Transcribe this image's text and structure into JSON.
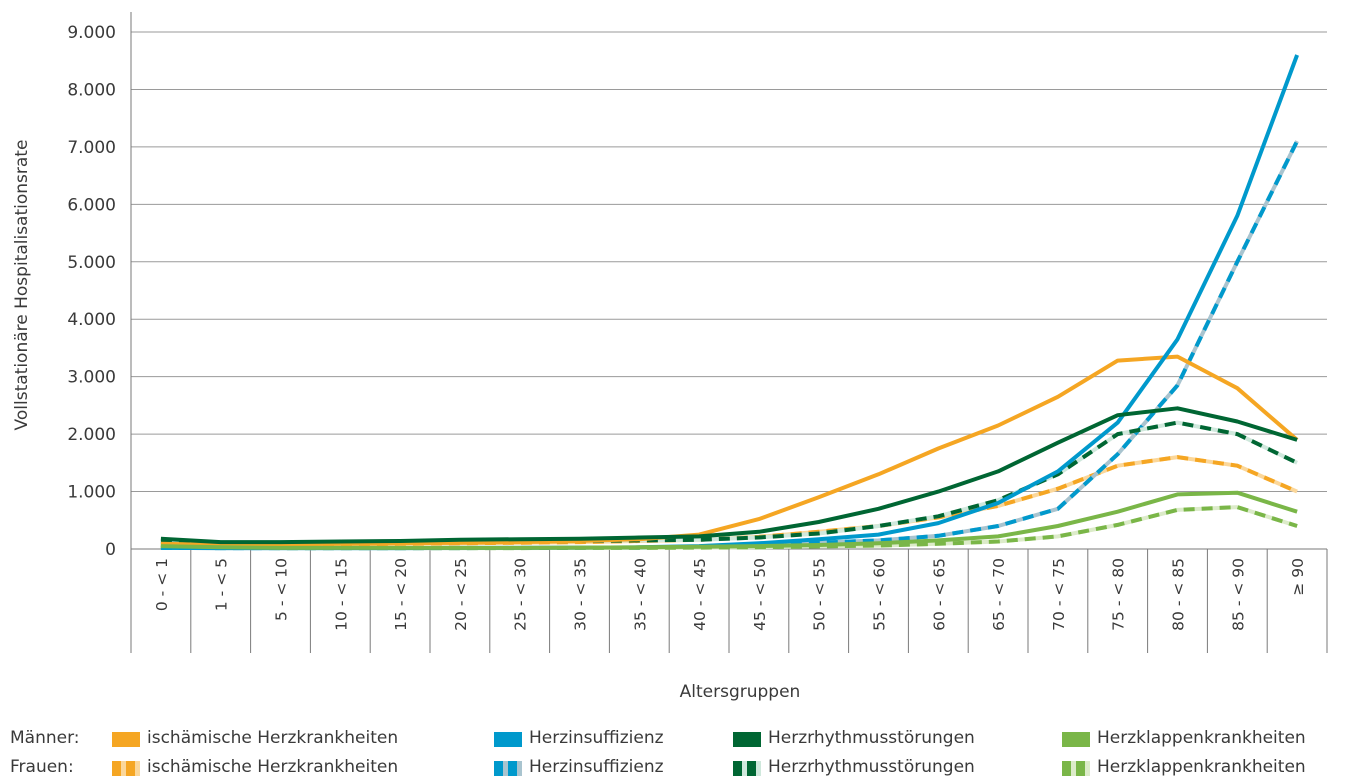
{
  "chart_data": {
    "type": "line",
    "title": "",
    "xlabel": "Altersgruppen",
    "ylabel": "Vollstationäre Hospitalisationsrate",
    "ylim": [
      0,
      9000
    ],
    "yticks": [
      0,
      1000,
      2000,
      3000,
      4000,
      5000,
      6000,
      7000,
      8000,
      9000
    ],
    "ytick_labels": [
      "0",
      "1.000",
      "2.000",
      "3.000",
      "4.000",
      "5.000",
      "6.000",
      "7.000",
      "8.000",
      "9.000"
    ],
    "grid": true,
    "legend_position": "bottom",
    "categories": [
      "0 - < 1",
      "1 - < 5",
      "5 - < 10",
      "10 - < 15",
      "15 - < 20",
      "20 - < 25",
      "25 - < 30",
      "30 - < 35",
      "35 - < 40",
      "40 - < 45",
      "45 - < 50",
      "50 - < 55",
      "55 - < 60",
      "60 - < 65",
      "65 - < 70",
      "70 - < 75",
      "75 - < 80",
      "80 - < 85",
      "85 - < 90",
      "≥ 90"
    ],
    "series": [
      {
        "name": "ischämische Herzkrankheiten",
        "group": "Männer",
        "color": "#f5a623",
        "dashed": false,
        "values": [
          90,
          70,
          80,
          90,
          100,
          110,
          120,
          140,
          170,
          250,
          520,
          900,
          1300,
          1750,
          2150,
          2650,
          3280,
          3350,
          2800,
          1900
        ]
      },
      {
        "name": "Herzinsuffizienz",
        "group": "Männer",
        "color": "#0099cc",
        "dashed": false,
        "values": [
          20,
          15,
          15,
          15,
          15,
          20,
          20,
          25,
          30,
          50,
          100,
          170,
          250,
          450,
          800,
          1350,
          2200,
          3650,
          5800,
          8600
        ]
      },
      {
        "name": "Herzrhythmusstörungen",
        "group": "Männer",
        "color": "#006633",
        "dashed": false,
        "values": [
          180,
          120,
          120,
          130,
          140,
          160,
          170,
          180,
          200,
          220,
          300,
          470,
          700,
          1000,
          1350,
          1850,
          2330,
          2450,
          2220,
          1900
        ]
      },
      {
        "name": "Herzklappenkrankheiten",
        "group": "Männer",
        "color": "#7ab648",
        "dashed": false,
        "values": [
          50,
          30,
          20,
          20,
          20,
          20,
          20,
          25,
          30,
          40,
          50,
          70,
          100,
          150,
          220,
          400,
          650,
          950,
          980,
          650
        ]
      },
      {
        "name": "ischämische Herzkrankheiten",
        "group": "Frauen",
        "color": "#f5a623",
        "dashed": true,
        "values": [
          70,
          60,
          70,
          80,
          90,
          100,
          110,
          120,
          140,
          160,
          210,
          300,
          400,
          550,
          750,
          1050,
          1450,
          1600,
          1450,
          1000
        ]
      },
      {
        "name": "Herzinsuffizienz",
        "group": "Frauen",
        "color": "#0099cc",
        "dashed": true,
        "values": [
          20,
          15,
          15,
          15,
          15,
          15,
          20,
          20,
          25,
          40,
          70,
          110,
          150,
          230,
          400,
          700,
          1650,
          2850,
          5000,
          7100
        ]
      },
      {
        "name": "Herzrhythmusstörungen",
        "group": "Frauen",
        "color": "#006633",
        "dashed": true,
        "values": [
          130,
          100,
          100,
          110,
          110,
          120,
          130,
          140,
          150,
          160,
          200,
          270,
          400,
          570,
          850,
          1300,
          2000,
          2200,
          2000,
          1500
        ]
      },
      {
        "name": "Herzklappenkrankheiten",
        "group": "Frauen",
        "color": "#7ab648",
        "dashed": true,
        "values": [
          30,
          20,
          15,
          15,
          15,
          15,
          15,
          20,
          20,
          25,
          30,
          45,
          60,
          90,
          130,
          220,
          420,
          680,
          730,
          400
        ]
      }
    ]
  },
  "legend": {
    "group_men": "Männer:",
    "group_women": "Frauen:",
    "men_items": [
      "ischämische Herzkrankheiten",
      "Herzinsuffizienz",
      "Herzrhythmusstörungen",
      "Herzklappenkrankheiten"
    ],
    "women_items": [
      "ischämische Herzkrankheiten",
      "Herzinsuffizienz",
      "Herzrhythmusstörungen",
      "Herzklappenkrankheiten"
    ]
  }
}
